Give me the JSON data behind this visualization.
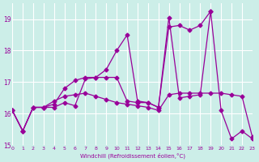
{
  "xlabel": "Windchill (Refroidissement éolien,°C)",
  "ylabel": "",
  "background_color": "#cceee8",
  "grid_color": "#ffffff",
  "line_color": "#990099",
  "xlim": [
    0,
    23
  ],
  "ylim": [
    15,
    19.5
  ],
  "yticks": [
    15,
    16,
    17,
    18,
    19
  ],
  "xticks": [
    0,
    1,
    2,
    3,
    4,
    5,
    6,
    7,
    8,
    9,
    10,
    11,
    12,
    13,
    14,
    15,
    16,
    17,
    18,
    19,
    20,
    21,
    22,
    23
  ],
  "series": [
    [
      16.1,
      15.45,
      16.2,
      16.2,
      16.2,
      16.35,
      16.25,
      17.1,
      17.15,
      17.15,
      17.15,
      16.4,
      16.35,
      16.35,
      16.2,
      19.05,
      16.5,
      16.55,
      16.6,
      19.25,
      16.1,
      15.2,
      15.45,
      15.2
    ],
    [
      16.1,
      15.45,
      16.2,
      16.2,
      16.3,
      16.8,
      17.05,
      17.15,
      17.15,
      17.4,
      18.0,
      18.5,
      16.4,
      16.35,
      16.2,
      18.75,
      18.8,
      18.65,
      18.8,
      19.25,
      null,
      null,
      null,
      null
    ],
    [
      16.1,
      15.45,
      16.2,
      16.2,
      16.4,
      16.55,
      16.6,
      16.65,
      16.55,
      16.45,
      16.35,
      16.3,
      16.25,
      16.2,
      16.1,
      16.6,
      16.65,
      16.65,
      16.65,
      16.65,
      16.65,
      16.6,
      16.55,
      15.25
    ]
  ]
}
